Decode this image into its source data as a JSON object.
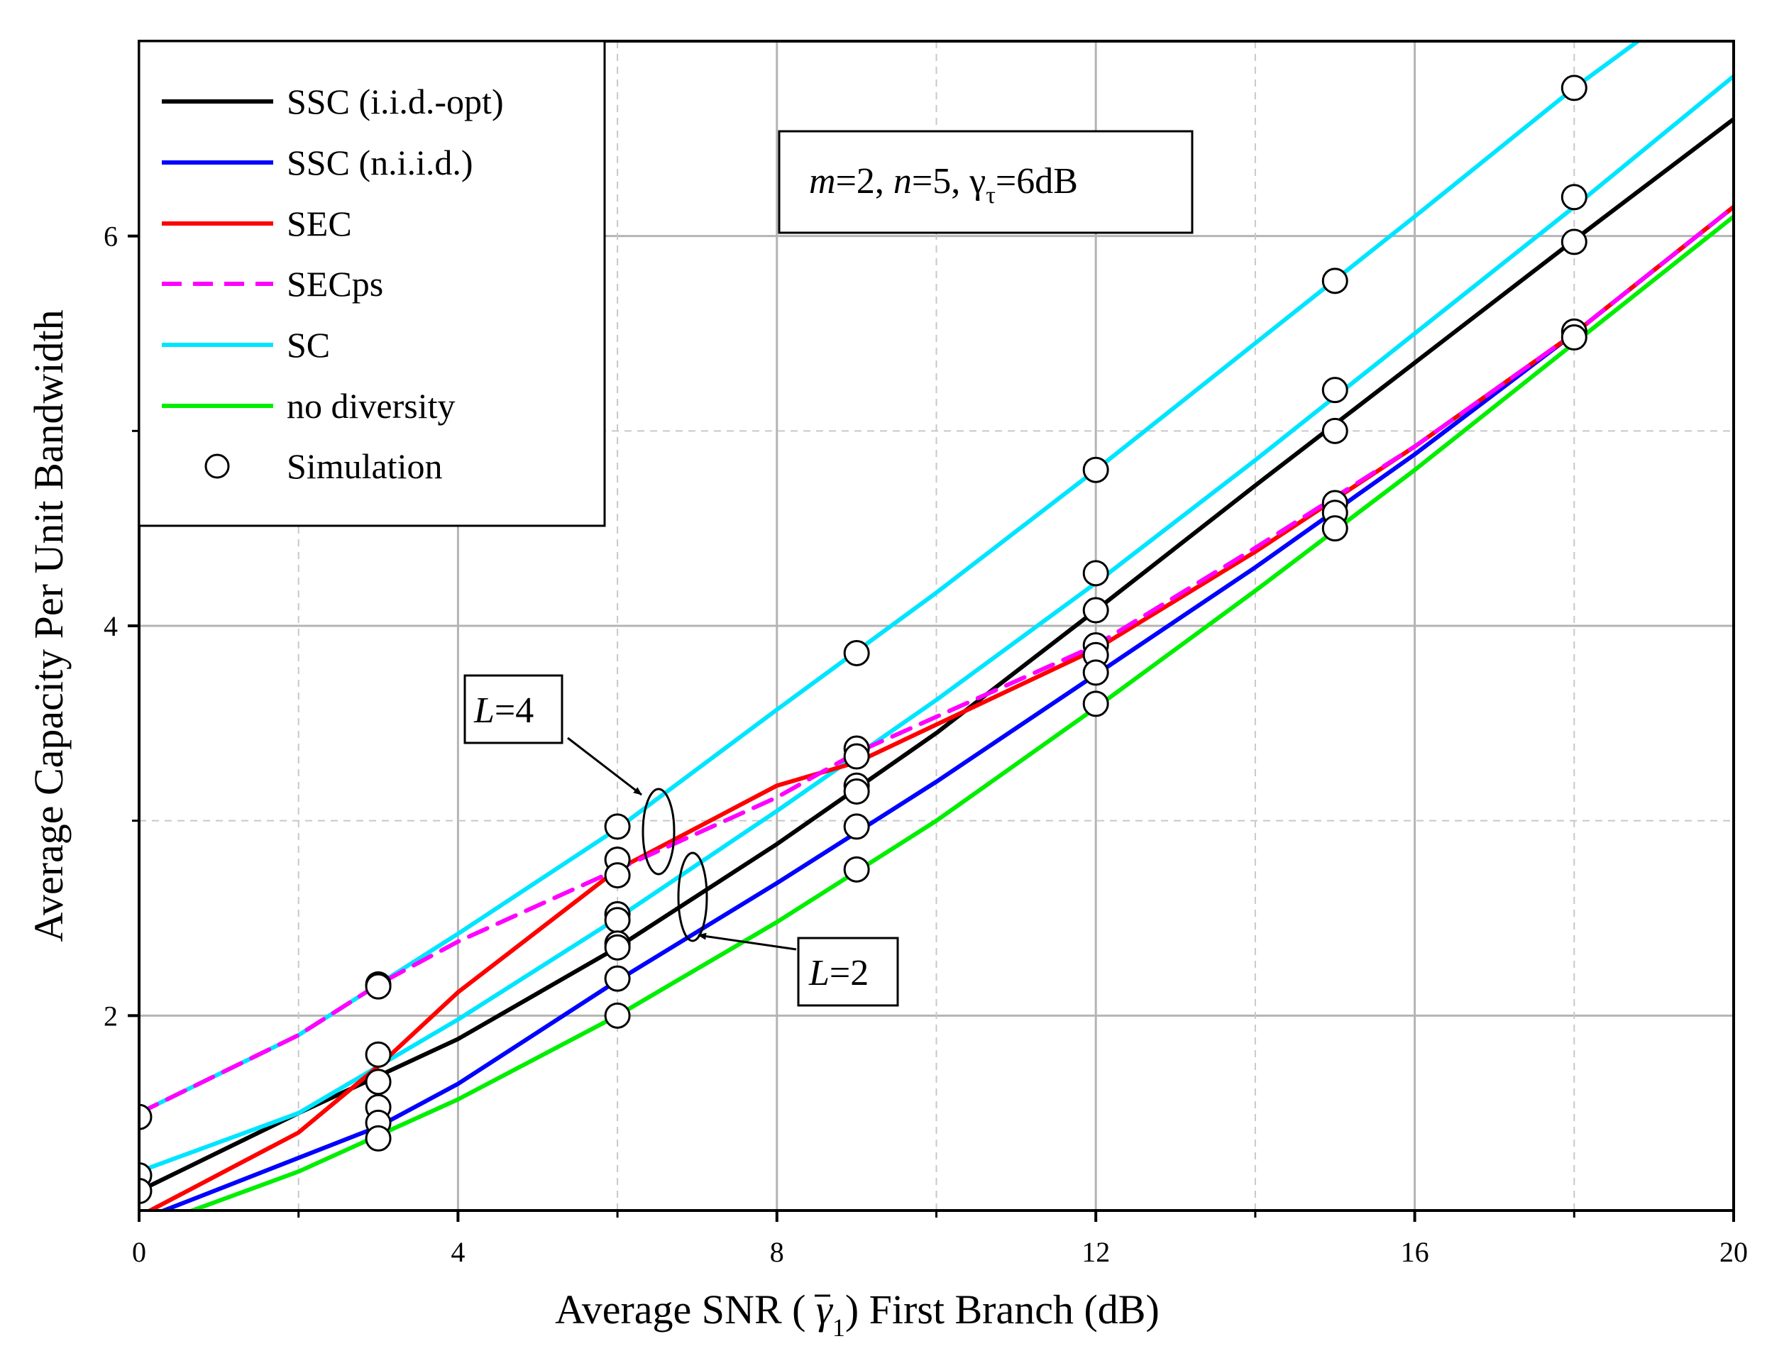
{
  "chart_data": {
    "type": "line",
    "title": "",
    "xlabel_prefix": "Average SNR ( ",
    "xlabel_symbol": "γ",
    "xlabel_subscript": "1",
    "xlabel_suffix": ") First Branch (dB)",
    "ylabel": "Average Capacity Per Unit Bandwidth",
    "xlim": [
      0,
      20
    ],
    "ylim": [
      1.0,
      7.0
    ],
    "x_ticks": [
      "0",
      "4",
      "8",
      "12",
      "16",
      "20"
    ],
    "x_tick_values": [
      0,
      4,
      8,
      12,
      16,
      20
    ],
    "x_minor_ticks": [
      2,
      6,
      10,
      14,
      18
    ],
    "y_ticks": [
      "2",
      "4",
      "6"
    ],
    "y_tick_values": [
      2,
      4,
      6
    ],
    "y_minor_ticks": [
      3,
      5
    ],
    "grid": true,
    "legend_position": "top-left",
    "series": [
      {
        "name": "SSC (i.i.d.-opt)",
        "color": "#000000",
        "dash": false,
        "x": [
          0,
          2,
          4,
          6,
          8,
          10,
          12,
          14,
          16,
          18,
          20
        ],
        "y": [
          1.1,
          1.5,
          1.88,
          2.35,
          2.88,
          3.45,
          4.08,
          4.72,
          5.35,
          5.98,
          6.6
        ]
      },
      {
        "name": "SSC (n.i.i.d.)",
        "color": "#0000ff",
        "dash": false,
        "x": [
          0,
          1,
          2,
          3,
          4,
          6,
          8,
          10,
          12,
          14,
          16,
          18,
          20
        ],
        "y": [
          0.95,
          1.11,
          1.27,
          1.43,
          1.65,
          2.18,
          2.68,
          3.2,
          3.75,
          4.3,
          4.88,
          5.5,
          6.15
        ]
      },
      {
        "name": "SEC",
        "color": "#ff0000",
        "dash": false,
        "x": [
          0,
          2,
          3,
          4,
          6,
          8,
          9,
          12,
          14,
          16,
          18,
          20
        ],
        "y": [
          0.97,
          1.4,
          1.74,
          2.12,
          2.75,
          3.18,
          3.3,
          3.88,
          4.38,
          4.92,
          5.5,
          6.15
        ]
      },
      {
        "name": "SECps",
        "color": "#ff00ff",
        "dash": true,
        "x": [
          0,
          2,
          3,
          4,
          6,
          8,
          9,
          12,
          14,
          16,
          18,
          20
        ],
        "y": [
          1.5,
          1.9,
          2.16,
          2.38,
          2.75,
          3.12,
          3.35,
          3.9,
          4.4,
          4.92,
          5.5,
          6.15
        ]
      },
      {
        "name": "SC",
        "color": "#00e5ff",
        "dash": false,
        "x": [
          0,
          2,
          4,
          6,
          8,
          10,
          12,
          14,
          16,
          18,
          20
        ],
        "y": [
          1.2,
          1.5,
          1.98,
          2.5,
          3.05,
          3.62,
          4.22,
          4.85,
          5.5,
          6.15,
          6.82
        ]
      },
      {
        "name": "SC",
        "color": "#00e5ff",
        "dash": false,
        "x": [
          0,
          2,
          4,
          6,
          8,
          10,
          12,
          14,
          16,
          18,
          18.8
        ],
        "y": [
          1.5,
          1.9,
          2.42,
          2.96,
          3.57,
          4.17,
          4.8,
          5.45,
          6.1,
          6.76,
          7.0
        ]
      },
      {
        "name": "no diversity",
        "color": "#00ee00",
        "dash": false,
        "x": [
          0,
          2,
          4,
          6,
          8,
          10,
          12,
          14,
          16,
          18,
          20
        ],
        "y": [
          0.9,
          1.2,
          1.57,
          2.0,
          2.48,
          3.0,
          3.58,
          4.18,
          4.8,
          5.45,
          6.1
        ]
      }
    ],
    "simulation": {
      "name": "Simulation",
      "points": [
        [
          0,
          1.48
        ],
        [
          0,
          1.18
        ],
        [
          0,
          1.1
        ],
        [
          3,
          2.16
        ],
        [
          3,
          2.15
        ],
        [
          3,
          1.8
        ],
        [
          3,
          1.66
        ],
        [
          3,
          1.53
        ],
        [
          3,
          1.45
        ],
        [
          3,
          1.37
        ],
        [
          6,
          2.97
        ],
        [
          6,
          2.8
        ],
        [
          6,
          2.72
        ],
        [
          6,
          2.52
        ],
        [
          6,
          2.49
        ],
        [
          6,
          2.37
        ],
        [
          6,
          2.35
        ],
        [
          6,
          2.19
        ],
        [
          6,
          2.0
        ],
        [
          9,
          3.86
        ],
        [
          9,
          3.37
        ],
        [
          9,
          3.33
        ],
        [
          9,
          3.18
        ],
        [
          9,
          3.15
        ],
        [
          9,
          2.97
        ],
        [
          9,
          2.75
        ],
        [
          12,
          4.8
        ],
        [
          12,
          4.27
        ],
        [
          12,
          4.08
        ],
        [
          12,
          3.9
        ],
        [
          12,
          3.85
        ],
        [
          12,
          3.76
        ],
        [
          12,
          3.6
        ],
        [
          15,
          5.77
        ],
        [
          15,
          5.21
        ],
        [
          15,
          5.0
        ],
        [
          15,
          4.63
        ],
        [
          15,
          4.58
        ],
        [
          15,
          4.5
        ],
        [
          18,
          6.76
        ],
        [
          18,
          6.2
        ],
        [
          18,
          5.97
        ],
        [
          18,
          5.51
        ],
        [
          18,
          5.48
        ]
      ]
    },
    "annotations": {
      "params_italic_m": "m",
      "params_eq_m": "=2, ",
      "params_italic_n": "n",
      "params_eq_n": "=5, ",
      "params_gamma": "γ",
      "params_tau": "τ",
      "params_eq_gamma": "=6dB",
      "l4_italic": "L",
      "l4_value": "=4",
      "l2_italic": "L",
      "l2_value": "=2"
    }
  }
}
